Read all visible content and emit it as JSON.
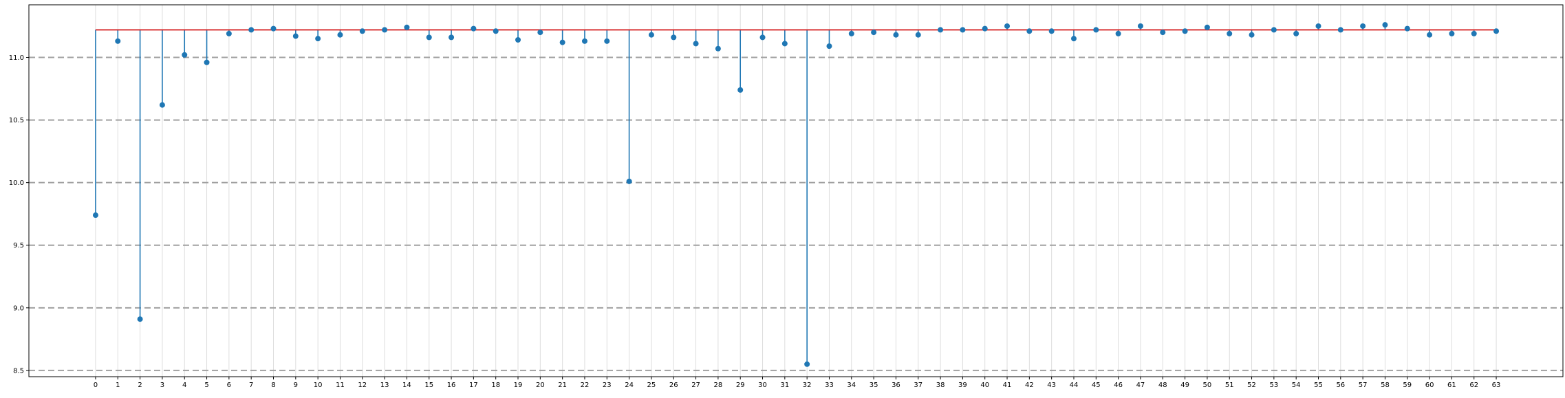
{
  "chart_data": {
    "type": "stem",
    "title": "",
    "xlabel": "",
    "ylabel": "",
    "x": [
      0,
      1,
      2,
      3,
      4,
      5,
      6,
      7,
      8,
      9,
      10,
      11,
      12,
      13,
      14,
      15,
      16,
      17,
      18,
      19,
      20,
      21,
      22,
      23,
      24,
      25,
      26,
      27,
      28,
      29,
      30,
      31,
      32,
      33,
      34,
      35,
      36,
      37,
      38,
      39,
      40,
      41,
      42,
      43,
      44,
      45,
      46,
      47,
      48,
      49,
      50,
      51,
      52,
      53,
      54,
      55,
      56,
      57,
      58,
      59,
      60,
      61,
      62,
      63
    ],
    "x_tick_labels": [
      "0",
      "1",
      "2",
      "3",
      "4",
      "5",
      "6",
      "7",
      "8",
      "9",
      "10",
      "11",
      "12",
      "13",
      "14",
      "15",
      "16",
      "17",
      "18",
      "19",
      "20",
      "21",
      "22",
      "23",
      "24",
      "25",
      "26",
      "27",
      "28",
      "29",
      "30",
      "31",
      "32",
      "33",
      "34",
      "35",
      "36",
      "37",
      "38",
      "39",
      "40",
      "41",
      "42",
      "43",
      "44",
      "45",
      "46",
      "47",
      "48",
      "49",
      "50",
      "51",
      "52",
      "53",
      "54",
      "55",
      "56",
      "57",
      "58",
      "59",
      "60",
      "61",
      "62",
      "63"
    ],
    "values": [
      9.74,
      11.13,
      8.91,
      10.62,
      11.02,
      10.96,
      11.19,
      11.22,
      11.23,
      11.17,
      11.15,
      11.18,
      11.21,
      11.22,
      11.24,
      11.16,
      11.16,
      11.23,
      11.21,
      11.14,
      11.2,
      11.12,
      11.13,
      11.13,
      10.01,
      11.18,
      11.16,
      11.11,
      11.07,
      10.74,
      11.16,
      11.11,
      8.55,
      11.09,
      11.19,
      11.2,
      11.18,
      11.18,
      11.22,
      11.22,
      11.23,
      11.25,
      11.21,
      11.21,
      11.15,
      11.22,
      11.19,
      11.25,
      11.2,
      11.21,
      11.24,
      11.19,
      11.18,
      11.22,
      11.19,
      11.25,
      11.22,
      11.25,
      11.26,
      11.23,
      11.18,
      11.19,
      11.19,
      11.21
    ],
    "baseline": 11.22,
    "xlim": [
      -3,
      66
    ],
    "ylim": [
      8.45,
      11.42
    ],
    "y_ticks": [
      8.5,
      9.0,
      9.5,
      10.0,
      10.5,
      11.0
    ],
    "y_tick_labels": [
      "8.5",
      "9.0",
      "9.5",
      "10.0",
      "10.5",
      "11.0"
    ],
    "y_grid": true,
    "y_grid_style": "dashed",
    "x_grid": true,
    "x_grid_style": "solid-light",
    "legend": "none",
    "colors": {
      "stem": "#1f77b4",
      "marker": "#1f77b4",
      "baseline": "#d62728",
      "y_grid": "#a0a0a0",
      "x_grid": "#dddddd",
      "axis": "#000000"
    }
  }
}
